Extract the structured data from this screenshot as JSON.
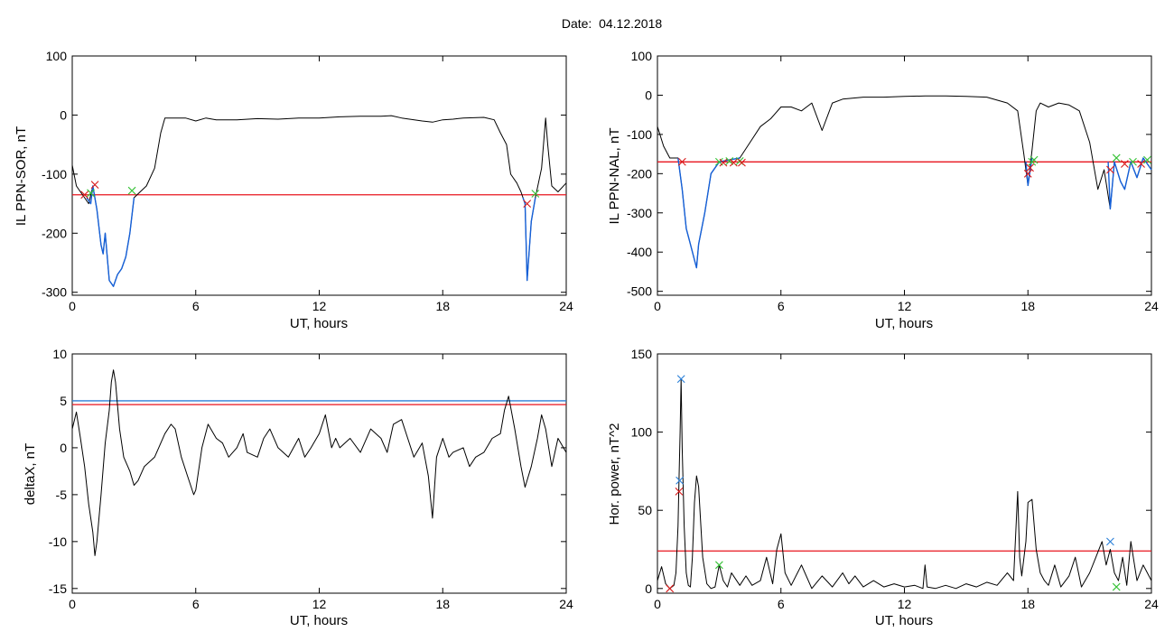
{
  "title": "Date:  04.12.2018",
  "colors": {
    "trace": "#000000",
    "highlight": "#1560d8",
    "threshold_red": "#e8141e",
    "threshold_blue": "#2a7fd8",
    "marker_red": "#d81818",
    "marker_green": "#36c236",
    "marker_blue": "#2a7fd8"
  },
  "chart_data": [
    {
      "type": "line",
      "xlabel": "UT, hours",
      "ylabel": "IL PPN-SOR, nT",
      "xlim": [
        0,
        24
      ],
      "ylim": [
        -305,
        100
      ],
      "xticks": [
        0,
        6,
        12,
        18,
        24
      ],
      "yticks": [
        -300,
        -200,
        -100,
        0,
        100
      ],
      "series": [
        {
          "role": "trace",
          "x": [
            0,
            0.2,
            0.4,
            0.6,
            0.8,
            1.0,
            1.2,
            1.4,
            1.5,
            1.6,
            1.8,
            2.0,
            2.2,
            2.4,
            2.6,
            2.8,
            3.0,
            3.3,
            3.6,
            4.0,
            4.3,
            4.5,
            5.0,
            5.5,
            6.0,
            6.5,
            7.0,
            8.0,
            9.0,
            10.0,
            11.0,
            12.0,
            13.0,
            14.0,
            15.0,
            15.5,
            16.0,
            17.0,
            17.5,
            18.0,
            18.5,
            19.0,
            20.0,
            20.5,
            20.8,
            21.1,
            21.3,
            21.6,
            21.8,
            22.0,
            22.1,
            22.3,
            22.5,
            22.8,
            23.0,
            23.1,
            23.3,
            23.6,
            24.0
          ],
          "y": [
            -85,
            -120,
            -130,
            -140,
            -150,
            -120,
            -160,
            -220,
            -235,
            -200,
            -280,
            -290,
            -270,
            -260,
            -240,
            -200,
            -140,
            -130,
            -120,
            -90,
            -30,
            -5,
            -5,
            -5,
            -10,
            -5,
            -8,
            -8,
            -6,
            -7,
            -5,
            -5,
            -3,
            -2,
            -2,
            -1,
            -5,
            -10,
            -12,
            -8,
            -7,
            -5,
            -4,
            -8,
            -30,
            -50,
            -100,
            -115,
            -130,
            -150,
            -280,
            -180,
            -140,
            -90,
            -5,
            -50,
            -120,
            -130,
            -115
          ]
        },
        {
          "role": "highlight",
          "x": [
            0.7,
            0.9,
            1.0,
            1.2,
            1.4,
            1.5,
            1.6,
            1.8,
            2.0,
            2.2,
            2.4,
            2.6,
            2.8,
            3.0
          ],
          "y": [
            -140,
            -150,
            -120,
            -160,
            -220,
            -235,
            -200,
            -280,
            -290,
            -270,
            -260,
            -240,
            -200,
            -140
          ]
        },
        {
          "role": "highlight",
          "x": [
            21.9,
            22.0,
            22.1,
            22.3,
            22.5
          ],
          "y": [
            -140,
            -150,
            -280,
            -180,
            -140
          ]
        }
      ],
      "hlines": [
        {
          "y": -135,
          "color": "red"
        }
      ],
      "markers": [
        {
          "x": 0.6,
          "y": -135,
          "color": "red"
        },
        {
          "x": 1.1,
          "y": -118,
          "color": "red"
        },
        {
          "x": 0.9,
          "y": -132,
          "color": "green"
        },
        {
          "x": 2.9,
          "y": -128,
          "color": "green"
        },
        {
          "x": 22.1,
          "y": -150,
          "color": "red"
        },
        {
          "x": 22.5,
          "y": -133,
          "color": "green"
        }
      ]
    },
    {
      "type": "line",
      "xlabel": "UT, hours",
      "ylabel": "IL PPN-NAL, nT",
      "xlim": [
        0,
        24
      ],
      "ylim": [
        -510,
        100
      ],
      "xticks": [
        0,
        6,
        12,
        18,
        24
      ],
      "yticks": [
        -500,
        -400,
        -300,
        -200,
        -100,
        0,
        100
      ],
      "series": [
        {
          "role": "trace",
          "x": [
            0,
            0.3,
            0.6,
            1.0,
            1.2,
            1.4,
            1.6,
            1.8,
            1.9,
            2.0,
            2.3,
            2.6,
            3.0,
            3.5,
            4.0,
            4.5,
            5.0,
            5.5,
            6.0,
            6.5,
            7.0,
            7.5,
            8.0,
            8.5,
            9.0,
            10.0,
            11.0,
            12.0,
            13.0,
            14.0,
            15.0,
            16.0,
            17.0,
            17.5,
            17.8,
            18.0,
            18.2,
            18.4,
            18.6,
            19.0,
            19.5,
            20.0,
            20.5,
            21.0,
            21.4,
            21.7,
            22.0,
            22.2,
            22.5,
            22.7,
            23.0,
            23.3,
            23.6,
            24.0
          ],
          "y": [
            -80,
            -130,
            -160,
            -160,
            -240,
            -340,
            -380,
            -420,
            -440,
            -380,
            -300,
            -200,
            -170,
            -165,
            -160,
            -120,
            -80,
            -60,
            -30,
            -30,
            -40,
            -20,
            -90,
            -20,
            -10,
            -5,
            -5,
            -3,
            -2,
            -2,
            -3,
            -5,
            -20,
            -40,
            -150,
            -230,
            -140,
            -40,
            -20,
            -30,
            -20,
            -25,
            -40,
            -120,
            -240,
            -190,
            -290,
            -170,
            -220,
            -240,
            -170,
            -210,
            -160,
            -190
          ]
        },
        {
          "role": "highlight",
          "x": [
            1.0,
            1.2,
            1.4,
            1.6,
            1.8,
            1.9,
            2.0,
            2.3,
            2.6,
            3.0,
            3.5,
            4.0
          ],
          "y": [
            -160,
            -240,
            -340,
            -380,
            -420,
            -440,
            -380,
            -300,
            -200,
            -170,
            -165,
            -160
          ]
        },
        {
          "role": "highlight",
          "x": [
            17.9,
            18.0,
            18.2
          ],
          "y": [
            -170,
            -230,
            -160
          ]
        },
        {
          "role": "highlight",
          "x": [
            21.9,
            22.0,
            22.2,
            22.5,
            22.7,
            23.0,
            23.3,
            23.6,
            24.0
          ],
          "y": [
            -170,
            -290,
            -170,
            -220,
            -240,
            -170,
            -210,
            -160,
            -190
          ]
        }
      ],
      "hlines": [
        {
          "y": -170,
          "color": "red"
        }
      ],
      "markers": [
        {
          "x": 1.2,
          "y": -170,
          "color": "red"
        },
        {
          "x": 3.0,
          "y": -170,
          "color": "green"
        },
        {
          "x": 3.2,
          "y": -172,
          "color": "red"
        },
        {
          "x": 3.5,
          "y": -168,
          "color": "green"
        },
        {
          "x": 3.7,
          "y": -172,
          "color": "red"
        },
        {
          "x": 4.0,
          "y": -168,
          "color": "green"
        },
        {
          "x": 4.1,
          "y": -172,
          "color": "red"
        },
        {
          "x": 18.0,
          "y": -200,
          "color": "red"
        },
        {
          "x": 18.1,
          "y": -185,
          "color": "red"
        },
        {
          "x": 18.2,
          "y": -170,
          "color": "green"
        },
        {
          "x": 18.3,
          "y": -165,
          "color": "green"
        },
        {
          "x": 22.0,
          "y": -190,
          "color": "red"
        },
        {
          "x": 22.3,
          "y": -160,
          "color": "green"
        },
        {
          "x": 22.7,
          "y": -175,
          "color": "red"
        },
        {
          "x": 23.1,
          "y": -170,
          "color": "green"
        },
        {
          "x": 23.5,
          "y": -175,
          "color": "red"
        },
        {
          "x": 23.8,
          "y": -165,
          "color": "green"
        }
      ]
    },
    {
      "type": "line",
      "xlabel": "UT, hours",
      "ylabel": "deltaX, nT",
      "xlim": [
        0,
        24
      ],
      "ylim": [
        -15.5,
        10
      ],
      "xticks": [
        0,
        6,
        12,
        18,
        24
      ],
      "yticks": [
        -15,
        -10,
        -5,
        0,
        5,
        10
      ],
      "series": [
        {
          "role": "trace",
          "x": [
            0,
            0.2,
            0.4,
            0.6,
            0.8,
            1.0,
            1.1,
            1.2,
            1.4,
            1.6,
            1.8,
            1.9,
            2.0,
            2.1,
            2.3,
            2.5,
            2.8,
            3.0,
            3.2,
            3.5,
            4.0,
            4.5,
            4.8,
            5.0,
            5.3,
            5.6,
            5.9,
            6.0,
            6.3,
            6.6,
            7.0,
            7.3,
            7.6,
            8.0,
            8.3,
            8.5,
            9.0,
            9.3,
            9.6,
            10.0,
            10.5,
            11.0,
            11.3,
            11.6,
            12.0,
            12.3,
            12.6,
            12.8,
            13.0,
            13.5,
            14.0,
            14.5,
            15.0,
            15.3,
            15.6,
            16.0,
            16.3,
            16.6,
            17.0,
            17.3,
            17.5,
            17.7,
            18.0,
            18.3,
            18.5,
            19.0,
            19.3,
            19.6,
            20.0,
            20.4,
            20.8,
            21.0,
            21.2,
            21.5,
            21.8,
            22.0,
            22.3,
            22.6,
            22.8,
            23.0,
            23.3,
            23.6,
            24.0
          ],
          "y": [
            2,
            3.8,
            1,
            -2,
            -6,
            -9,
            -11.5,
            -10,
            -5,
            0.5,
            4,
            7,
            8.3,
            7,
            2,
            -1,
            -2.5,
            -4,
            -3.5,
            -2,
            -1,
            1.5,
            2.5,
            2,
            -1,
            -3,
            -5,
            -4.5,
            0,
            2.5,
            1,
            0.5,
            -1,
            0,
            1.5,
            -0.5,
            -1,
            1,
            2,
            0,
            -1,
            1,
            -1,
            0,
            1.5,
            3.5,
            0,
            1,
            0,
            1,
            -0.5,
            2,
            1,
            -0.5,
            2.5,
            3,
            1,
            -1,
            0.5,
            -3,
            -7.5,
            -1,
            1,
            -1,
            -0.5,
            0,
            -2,
            -1,
            -0.5,
            1,
            1.5,
            4,
            5.5,
            2,
            -2,
            -4.2,
            -2,
            1,
            3.5,
            2,
            -2,
            1,
            -0.5
          ]
        }
      ],
      "hlines": [
        {
          "y": 5,
          "color": "blue"
        },
        {
          "y": 4.6,
          "color": "red"
        }
      ],
      "markers": []
    },
    {
      "type": "line",
      "xlabel": "UT, hours",
      "ylabel": "Hor. power, nT^2",
      "xlim": [
        0,
        24
      ],
      "ylim": [
        -3,
        150
      ],
      "xticks": [
        0,
        6,
        12,
        18,
        24
      ],
      "yticks": [
        0,
        50,
        100,
        150
      ],
      "series": [
        {
          "role": "trace",
          "x": [
            0,
            0.2,
            0.4,
            0.6,
            0.8,
            0.9,
            1.0,
            1.05,
            1.1,
            1.15,
            1.2,
            1.3,
            1.4,
            1.5,
            1.6,
            1.7,
            1.8,
            1.9,
            2.0,
            2.2,
            2.4,
            2.6,
            2.8,
            3.0,
            3.2,
            3.4,
            3.6,
            4.0,
            4.3,
            4.6,
            5.0,
            5.3,
            5.6,
            5.8,
            6.0,
            6.2,
            6.5,
            7.0,
            7.5,
            8.0,
            8.5,
            9.0,
            9.3,
            9.6,
            10.0,
            10.5,
            11.0,
            11.5,
            12.0,
            12.5,
            12.9,
            13.0,
            13.1,
            13.5,
            14.0,
            14.5,
            15.0,
            15.5,
            16.0,
            16.5,
            17.0,
            17.3,
            17.5,
            17.6,
            17.7,
            17.9,
            18.0,
            18.2,
            18.4,
            18.6,
            18.8,
            19.0,
            19.3,
            19.6,
            20.0,
            20.3,
            20.6,
            21.0,
            21.3,
            21.6,
            21.8,
            22.0,
            22.2,
            22.4,
            22.6,
            22.8,
            23.0,
            23.3,
            23.6,
            24.0
          ],
          "y": [
            5,
            14,
            3,
            0,
            2,
            10,
            40,
            70,
            100,
            134,
            90,
            40,
            10,
            2,
            1,
            20,
            55,
            72,
            65,
            20,
            3,
            0,
            1,
            15,
            5,
            1,
            10,
            2,
            8,
            2,
            5,
            20,
            3,
            25,
            35,
            10,
            2,
            15,
            0,
            8,
            1,
            10,
            3,
            8,
            1,
            5,
            1,
            3,
            1,
            2,
            0,
            15,
            1,
            0,
            2,
            0,
            3,
            1,
            4,
            2,
            10,
            5,
            62,
            20,
            8,
            30,
            55,
            57,
            25,
            10,
            5,
            2,
            15,
            1,
            8,
            20,
            1,
            10,
            20,
            30,
            15,
            25,
            10,
            5,
            20,
            2,
            30,
            5,
            15,
            5
          ]
        }
      ],
      "hlines": [
        {
          "y": 24,
          "color": "red"
        }
      ],
      "markers": [
        {
          "x": 0.6,
          "y": 0,
          "color": "red"
        },
        {
          "x": 1.05,
          "y": 62,
          "color": "red"
        },
        {
          "x": 1.08,
          "y": 69,
          "color": "blue"
        },
        {
          "x": 1.15,
          "y": 134,
          "color": "blue"
        },
        {
          "x": 3.0,
          "y": 15,
          "color": "green"
        },
        {
          "x": 22.0,
          "y": 30,
          "color": "blue"
        },
        {
          "x": 22.3,
          "y": 1,
          "color": "green"
        }
      ]
    }
  ]
}
